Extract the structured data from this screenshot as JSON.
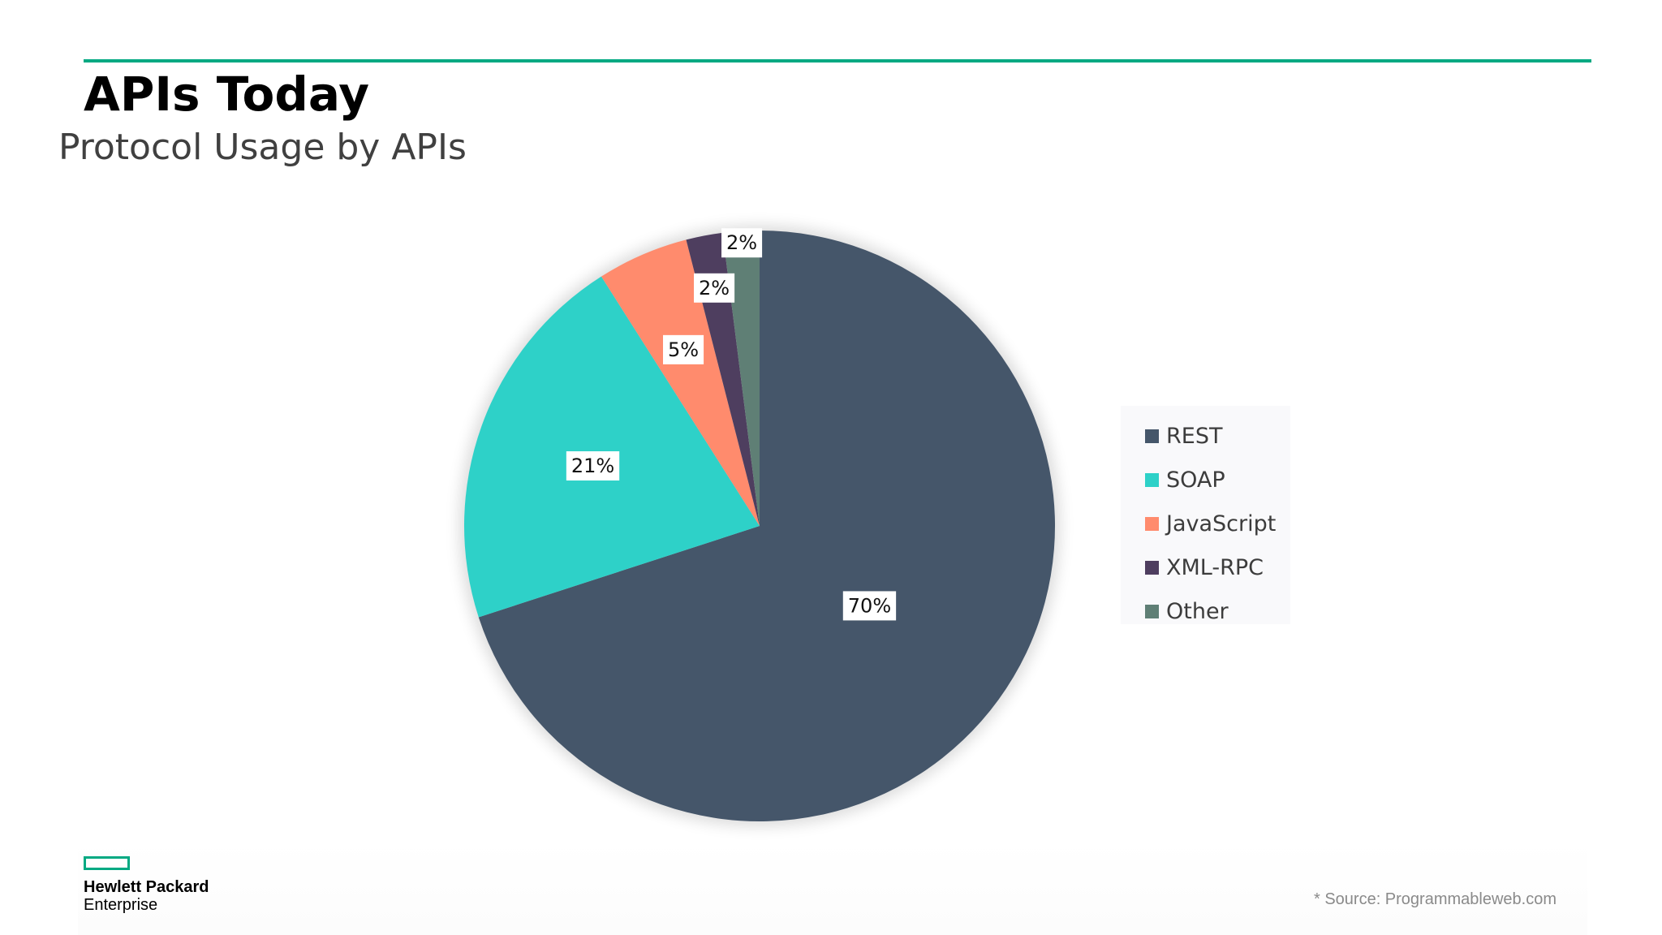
{
  "slide": {
    "title": "APIs Today",
    "subtitle": "Protocol Usage by APIs",
    "accent_color": "#01a982"
  },
  "chart_data": {
    "type": "pie",
    "categories": [
      "REST",
      "SOAP",
      "JavaScript",
      "XML-RPC",
      "Other"
    ],
    "values": [
      70,
      21,
      5,
      2,
      2
    ],
    "labels": [
      "70%",
      "21%",
      "5%",
      "2%",
      "2%"
    ],
    "colors": [
      "#45566a",
      "#2ed1c8",
      "#ff8b6d",
      "#4e3e5f",
      "#5f7f75"
    ],
    "legend_position": "right",
    "start_angle_deg": 0,
    "direction": "clockwise"
  },
  "legend": {
    "items": [
      {
        "label": "REST",
        "color": "#45566a"
      },
      {
        "label": "SOAP",
        "color": "#2ed1c8"
      },
      {
        "label": "JavaScript",
        "color": "#ff8b6d"
      },
      {
        "label": "XML-RPC",
        "color": "#4e3e5f"
      },
      {
        "label": "Other",
        "color": "#5f7f75"
      }
    ]
  },
  "footer": {
    "logo_line1": "Hewlett Packard",
    "logo_line2": "Enterprise",
    "source": "*   Source: Programmableweb.com"
  }
}
